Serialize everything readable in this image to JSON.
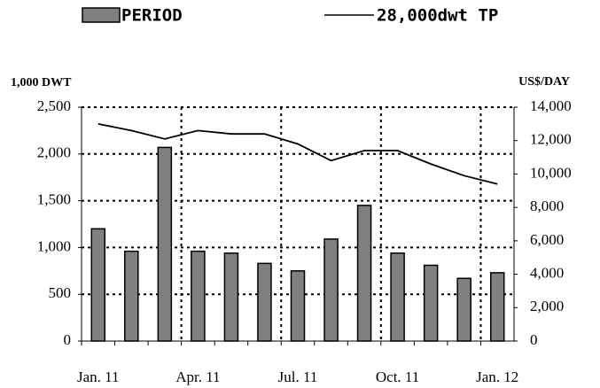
{
  "chart_data": {
    "type": "bar",
    "ylabel": "1,000 DWT",
    "y2label": "US$/DAY",
    "categories": [
      "Jan. 11",
      null,
      null,
      "Apr. 11",
      null,
      null,
      "Jul. 11",
      null,
      null,
      "Oct. 11",
      null,
      null,
      "Jan. 12"
    ],
    "series": [
      {
        "name": "PERIOD",
        "color": "#808080",
        "values": [
          1200,
          960,
          2070,
          960,
          940,
          830,
          750,
          1090,
          1450,
          940,
          810,
          670,
          730
        ]
      },
      {
        "name": "28,000dwt TP",
        "color": "#000000",
        "type": "line",
        "axis": "y2",
        "values": [
          13000,
          12600,
          12100,
          12600,
          12400,
          12400,
          11800,
          10800,
          11400,
          11400,
          10600,
          9900,
          9400
        ]
      }
    ],
    "ylim": [
      0,
      2500
    ],
    "yticks": [
      0,
      500,
      {
        "value": 1000,
        "label": "1,000"
      },
      {
        "value": 1500,
        "label": "1,500"
      },
      {
        "value": 2000,
        "label": "2,000"
      },
      {
        "value": 2500,
        "label": "2,500"
      }
    ],
    "y2lim": [
      0,
      14000
    ],
    "y2ticks": [
      0,
      {
        "value": 2000,
        "label": "2,000"
      },
      {
        "value": 4000,
        "label": "4,000"
      },
      {
        "value": 6000,
        "label": "6,000"
      },
      {
        "value": 8000,
        "label": "8,000"
      },
      {
        "value": 10000,
        "label": "10,000"
      },
      {
        "value": 12000,
        "label": "12,000"
      },
      {
        "value": 14000,
        "label": "14,000"
      }
    ],
    "grid": true
  }
}
